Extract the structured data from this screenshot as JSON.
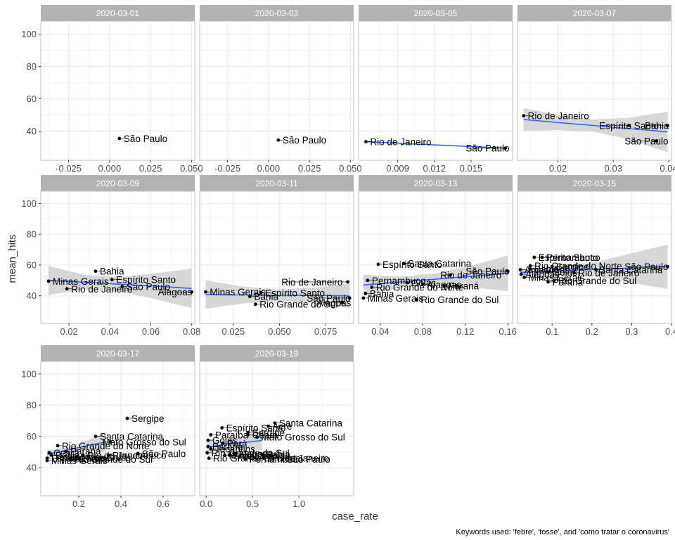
{
  "caption": "Keywords used: 'febre', 'tosse', and 'como tratar o coronavirus'",
  "chart_data": {
    "type": "scatter",
    "xlabel": "case_rate",
    "ylabel": "mean_hits",
    "ylim": [
      22,
      108
    ],
    "y_ticks": [
      40,
      60,
      80,
      100
    ],
    "y_tick_labels": [
      "40",
      "60",
      "80",
      "100"
    ],
    "grid": true,
    "smoother": "linear fit with confidence band",
    "colors": {
      "strip_bg": "#b3b3b3",
      "point": "#000000",
      "fit_line": "#3366FF",
      "band": "#d3d3d3",
      "grid": "#ebebeb",
      "panel_border": "#bfbfbf"
    },
    "panels": [
      {
        "label": "2020-03-01",
        "xlim": [
          -0.042,
          0.052
        ],
        "x_ticks": [
          -0.025,
          0.0,
          0.025,
          0.05
        ],
        "x_tick_labels": [
          "-0.025",
          "0.000",
          "0.025",
          "0.050"
        ],
        "points": [
          {
            "state": "São Paulo",
            "x": 0.006,
            "y": 35.5
          }
        ],
        "fit": null
      },
      {
        "label": "2020-03-03",
        "xlim": [
          -0.042,
          0.052
        ],
        "x_ticks": [
          -0.025,
          0.0,
          0.025,
          0.05
        ],
        "x_tick_labels": [
          "-0.025",
          "0.000",
          "0.025",
          "0.050"
        ],
        "points": [
          {
            "state": "São Paulo",
            "x": 0.006,
            "y": 34.5
          }
        ],
        "fit": null
      },
      {
        "label": "2020-03-05",
        "xlim": [
          0.0058,
          0.0184
        ],
        "x_ticks": [
          0.009,
          0.012,
          0.015
        ],
        "x_tick_labels": [
          "0.009",
          "0.012",
          "0.015"
        ],
        "points": [
          {
            "state": "Rio de Janeiro",
            "x": 0.0064,
            "y": 33.5
          },
          {
            "state": "São Paulo",
            "x": 0.0178,
            "y": 29.5
          }
        ],
        "fit": {
          "x": [
            0.0064,
            0.0178
          ],
          "y": [
            33.5,
            29.5
          ],
          "lower": [
            33.5,
            29.5
          ],
          "upper": [
            33.5,
            29.5
          ]
        }
      },
      {
        "label": "2020-03-07",
        "xlim": [
          0.0127,
          0.0405
        ],
        "x_ticks": [
          0.02,
          0.03,
          0.04
        ],
        "x_tick_labels": [
          "0.02",
          "0.03",
          "0.04"
        ],
        "points": [
          {
            "state": "Rio de Janeiro",
            "x": 0.0138,
            "y": 49.5
          },
          {
            "state": "Espírito Santo",
            "x": 0.0328,
            "y": 43.5
          },
          {
            "state": "Bahia",
            "x": 0.0398,
            "y": 43.5
          },
          {
            "state": "São Paulo",
            "x": 0.0378,
            "y": 34.0
          }
        ],
        "fit": {
          "x": [
            0.0138,
            0.0201,
            0.0264,
            0.0327,
            0.0398
          ],
          "y": [
            47.2,
            45.3,
            43.5,
            41.6,
            39.6
          ],
          "lower": [
            40.2,
            40.6,
            39.7,
            35.0,
            27.0
          ],
          "upper": [
            54.3,
            50.0,
            47.2,
            48.2,
            52.1
          ]
        }
      },
      {
        "label": "2020-03-09",
        "xlim": [
          0.0062,
          0.0815
        ],
        "x_ticks": [
          0.02,
          0.04,
          0.06,
          0.08
        ],
        "x_tick_labels": [
          "0.02",
          "0.04",
          "0.06",
          "0.08"
        ],
        "points": [
          {
            "state": "Bahia",
            "x": 0.033,
            "y": 56.0
          },
          {
            "state": "Minas Gerais",
            "x": 0.01,
            "y": 49.5
          },
          {
            "state": "Espírito Santo",
            "x": 0.041,
            "y": 50.5
          },
          {
            "state": "São Paulo",
            "x": 0.046,
            "y": 46.0
          },
          {
            "state": "Rio de Janeiro",
            "x": 0.019,
            "y": 44.5
          },
          {
            "state": "Alagoas",
            "x": 0.08,
            "y": 42.5
          }
        ],
        "fit": {
          "x": [
            0.01,
            0.028,
            0.046,
            0.064,
            0.08
          ],
          "y": [
            50.0,
            48.8,
            47.4,
            46.1,
            44.8
          ],
          "lower": [
            40.6,
            44.1,
            42.7,
            37.2,
            32.0
          ],
          "upper": [
            59.4,
            53.5,
            52.1,
            55.0,
            57.6
          ]
        }
      },
      {
        "label": "2020-03-11",
        "xlim": [
          0.0068,
          0.0902
        ],
        "x_ticks": [
          0.025,
          0.05,
          0.075
        ],
        "x_tick_labels": [
          "0.025",
          "0.050",
          "0.075"
        ],
        "points": [
          {
            "state": "Minas Gerais",
            "x": 0.01,
            "y": 42.5
          },
          {
            "state": "Bahia",
            "x": 0.034,
            "y": 39.5
          },
          {
            "state": "Espírito Santo",
            "x": 0.04,
            "y": 42.0
          },
          {
            "state": "Rio Grande do Sul",
            "x": 0.037,
            "y": 34.5
          },
          {
            "state": "Rio de Janeiro",
            "x": 0.087,
            "y": 49.0
          },
          {
            "state": "São Paulo",
            "x": 0.088,
            "y": 38.5
          },
          {
            "state": "Alagoas",
            "x": 0.084,
            "y": 35.5
          }
        ],
        "fit": {
          "x": [
            0.01,
            0.03,
            0.05,
            0.07,
            0.088
          ],
          "y": [
            40.8,
            40.5,
            40.3,
            40.2,
            40.0
          ],
          "lower": [
            31.5,
            35.0,
            36.5,
            35.0,
            32.0
          ],
          "upper": [
            50.0,
            46.0,
            44.0,
            45.4,
            48.0
          ]
        }
      },
      {
        "label": "2020-03-13",
        "xlim": [
          0.0195,
          0.1645
        ],
        "x_ticks": [
          0.04,
          0.08,
          0.12,
          0.16
        ],
        "x_tick_labels": [
          "0.04",
          "0.08",
          "0.12",
          "0.16"
        ],
        "points": [
          {
            "state": "Espírito Santo",
            "x": 0.038,
            "y": 60.5
          },
          {
            "state": "Santa Catarina",
            "x": 0.062,
            "y": 61.0
          },
          {
            "state": "Pernambuco",
            "x": 0.028,
            "y": 50.0
          },
          {
            "state": "Goiás",
            "x": 0.065,
            "y": 48.5
          },
          {
            "state": "São Paulo",
            "x": 0.16,
            "y": 56.0
          },
          {
            "state": "Rio de Janeiro",
            "x": 0.106,
            "y": 53.5
          },
          {
            "state": "Rio Grande do Norte",
            "x": 0.032,
            "y": 45.5
          },
          {
            "state": "Alagoas",
            "x": 0.08,
            "y": 47.5
          },
          {
            "state": "Bahia",
            "x": 0.026,
            "y": 41.5
          },
          {
            "state": "Paraná",
            "x": 0.1,
            "y": 46.5
          },
          {
            "state": "Minas Gerais",
            "x": 0.024,
            "y": 38.5
          },
          {
            "state": "Rio Grande do Sul",
            "x": 0.074,
            "y": 37.5
          }
        ],
        "fit": {
          "x": [
            0.024,
            0.058,
            0.092,
            0.126,
            0.16
          ],
          "y": [
            47.0,
            48.9,
            50.8,
            52.7,
            54.6
          ],
          "lower": [
            40.0,
            45.4,
            47.0,
            45.5,
            43.0
          ],
          "upper": [
            53.7,
            52.4,
            54.6,
            59.7,
            66.2
          ]
        }
      },
      {
        "label": "2020-03-15",
        "xlim": [
          0.013,
          0.4
        ],
        "x_ticks": [
          0.1,
          0.2,
          0.3,
          0.4
        ],
        "x_tick_labels": [
          "0.1",
          "0.2",
          "0.3",
          "0.4"
        ],
        "points": [
          {
            "state": "Espírito Santo",
            "x": 0.055,
            "y": 65.0
          },
          {
            "state": "Rio Grande do Norte",
            "x": 0.045,
            "y": 59.5
          },
          {
            "state": "Pernambuco",
            "x": 0.075,
            "y": 65.0
          },
          {
            "state": "Sergipe",
            "x": 0.1,
            "y": 59.0
          },
          {
            "state": "Goiás",
            "x": 0.09,
            "y": 55.5
          },
          {
            "state": "Amazonas",
            "x": 0.02,
            "y": 57.0
          },
          {
            "state": "Minas Gerais",
            "x": 0.03,
            "y": 52.0
          },
          {
            "state": "Bahia",
            "x": 0.045,
            "y": 57.5
          },
          {
            "state": "Santa Catarina",
            "x": 0.21,
            "y": 57.0
          },
          {
            "state": "São Paulo",
            "x": 0.39,
            "y": 59.0
          },
          {
            "state": "Rio de Janeiro",
            "x": 0.155,
            "y": 55.0
          },
          {
            "state": "Alagoas",
            "x": 0.022,
            "y": 54.0
          },
          {
            "state": "Rio Grande do Sul",
            "x": 0.105,
            "y": 50.0
          },
          {
            "state": "Paraná",
            "x": 0.09,
            "y": 49.0
          }
        ],
        "fit": {
          "x": [
            0.02,
            0.112,
            0.205,
            0.298,
            0.39
          ],
          "y": [
            55.2,
            56.2,
            57.1,
            58.0,
            58.9
          ],
          "lower": [
            53.0,
            54.0,
            52.5,
            48.5,
            44.5
          ],
          "upper": [
            57.4,
            58.4,
            61.7,
            67.5,
            73.3
          ]
        }
      },
      {
        "label": "2020-03-17",
        "xlim": [
          0.02,
          0.75
        ],
        "x_ticks": [
          0.2,
          0.4,
          0.6
        ],
        "x_tick_labels": [
          "0.2",
          "0.4",
          "0.6"
        ],
        "points": [
          {
            "state": "Ceará",
            "x": 0.06,
            "y": 49.5
          },
          {
            "state": "Sergipe",
            "x": 0.43,
            "y": 71.5
          },
          {
            "state": "Bahia",
            "x": 0.07,
            "y": 48.0
          },
          {
            "state": "Santa Catarina",
            "x": 0.28,
            "y": 60.0
          },
          {
            "state": "Rio Grande do Norte",
            "x": 0.1,
            "y": 54.0
          },
          {
            "state": "Mato Grosso do Sul",
            "x": 0.35,
            "y": 56.5
          },
          {
            "state": "Paraná",
            "x": 0.14,
            "y": 50.5
          },
          {
            "state": "Rio de Janeiro",
            "x": 0.22,
            "y": 48.0
          },
          {
            "state": "Pernambuco",
            "x": 0.34,
            "y": 48.0
          },
          {
            "state": "São Paulo",
            "x": 0.48,
            "y": 49.0
          },
          {
            "state": "Minas Gerais",
            "x": 0.05,
            "y": 44.5
          },
          {
            "state": "Alagoas",
            "x": 0.12,
            "y": 47.0
          },
          {
            "state": "Goiás",
            "x": 0.31,
            "y": 46.5
          },
          {
            "state": "Espírito Santo",
            "x": 0.05,
            "y": 46.0
          },
          {
            "state": "Amazonas",
            "x": 0.1,
            "y": 46.0
          },
          {
            "state": "Rio Grande do Sul",
            "x": 0.16,
            "y": 45.5
          }
        ],
        "fit": {
          "x": [
            0.05,
            0.12,
            0.19,
            0.26,
            0.33
          ],
          "y": [
            48.5,
            50.5,
            52.5,
            54.5,
            56.5
          ],
          "lower": [
            46.0,
            48.8,
            50.2,
            50.5,
            50.0
          ],
          "upper": [
            51.0,
            52.2,
            54.8,
            58.5,
            63.0
          ]
        }
      },
      {
        "label": "2020-03-19",
        "xlim": [
          -0.07,
          1.59
        ],
        "x_ticks": [
          0.0,
          0.5,
          1.0
        ],
        "x_tick_labels": [
          "0.0",
          "0.5",
          "1.0"
        ],
        "points": [
          {
            "state": "Paraíba",
            "x": 0.05,
            "y": 61.0
          },
          {
            "state": "Espírito Santo",
            "x": 0.17,
            "y": 65.5
          },
          {
            "state": "Acre",
            "x": 0.67,
            "y": 66.5
          },
          {
            "state": "Tocantins",
            "x": 0.05,
            "y": 52.0
          },
          {
            "state": "Sergipe",
            "x": 0.45,
            "y": 62.5
          },
          {
            "state": "Santa Catarina",
            "x": 0.74,
            "y": 68.5
          },
          {
            "state": "Goiás",
            "x": 0.02,
            "y": 57.5
          },
          {
            "state": "Ceará",
            "x": 0.45,
            "y": 61.0
          },
          {
            "state": "Mato Grosso do Sul",
            "x": 0.55,
            "y": 59.5
          },
          {
            "state": "Paraná",
            "x": 0.02,
            "y": 53.5
          },
          {
            "state": "Pará",
            "x": 0.18,
            "y": 55.5
          },
          {
            "state": "Rio Grande do Sul",
            "x": 0.01,
            "y": 49.5
          },
          {
            "state": "Bahia",
            "x": 0.6,
            "y": 48.5
          },
          {
            "state": "Amazonas",
            "x": 0.25,
            "y": 48.0
          },
          {
            "state": "Alagoas",
            "x": 0.3,
            "y": 49.0
          },
          {
            "state": "Pernambuco",
            "x": 0.42,
            "y": 45.5
          },
          {
            "state": "São Paulo",
            "x": 0.82,
            "y": 45.5
          },
          {
            "state": "Rio Grande do Norte",
            "x": 0.03,
            "y": 46.0
          },
          {
            "state": "Rio de Janeiro",
            "x": 0.62,
            "y": 46.0
          },
          {
            "state": "Minas Gerais",
            "x": 0.2,
            "y": 48.0
          }
        ],
        "fit": {
          "x": [
            0.01,
            0.16,
            0.31,
            0.46,
            0.6
          ],
          "y": [
            53.2,
            54.3,
            55.4,
            56.4,
            57.4
          ],
          "lower": [
            48.0,
            50.8,
            52.0,
            52.0,
            51.0
          ],
          "upper": [
            58.4,
            57.8,
            58.8,
            60.8,
            63.8
          ]
        }
      }
    ]
  }
}
